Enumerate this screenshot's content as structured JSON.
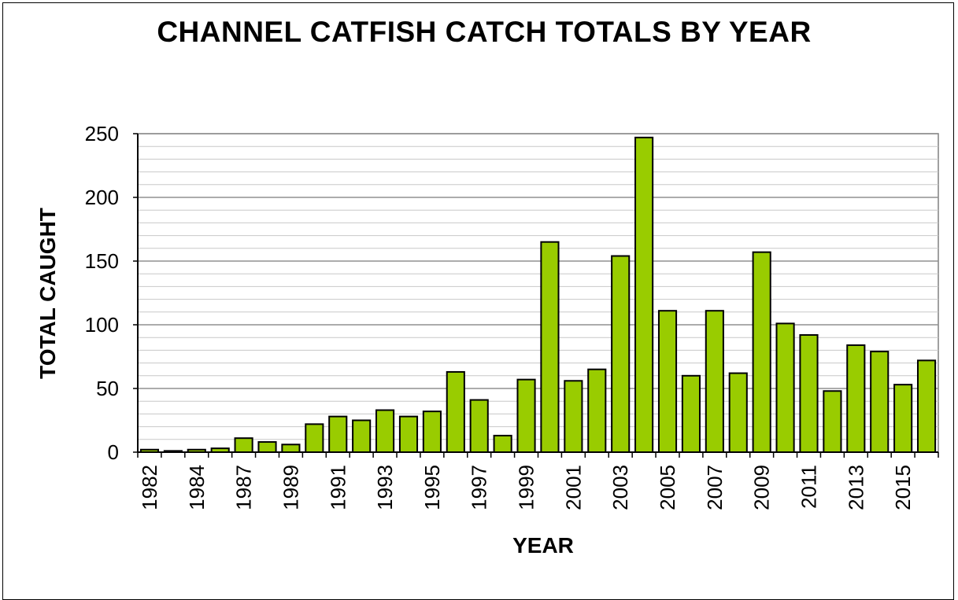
{
  "chart_data": {
    "type": "bar",
    "title": "CHANNEL CATFISH CATCH TOTALS BY YEAR",
    "xlabel": "YEAR",
    "ylabel": "TOTAL CAUGHT",
    "ylim": [
      0,
      250
    ],
    "yticks": [
      0,
      50,
      100,
      150,
      200,
      250
    ],
    "minor_grid_step": 10,
    "grid": true,
    "bar_color": "#99cc00",
    "categories": [
      "1982",
      "1983",
      "1984",
      "1986",
      "1987",
      "1988",
      "1989",
      "1990",
      "1991",
      "1992",
      "1993",
      "1994",
      "1995",
      "1996",
      "1997",
      "1998",
      "1999",
      "2000",
      "2001",
      "2002",
      "2003",
      "2004",
      "2005",
      "2006",
      "2007",
      "2008",
      "2009",
      "2010",
      "2011",
      "2012",
      "2013",
      "2014",
      "2015",
      "2016"
    ],
    "visible_tick_labels": [
      "1982",
      "1984",
      "1987",
      "1989",
      "1991",
      "1993",
      "1995",
      "1997",
      "1999",
      "2001",
      "2003",
      "2005",
      "2007",
      "2009",
      "2011",
      "2013",
      "2015"
    ],
    "values": [
      2,
      1,
      2,
      3,
      11,
      8,
      6,
      22,
      28,
      25,
      33,
      28,
      32,
      63,
      41,
      13,
      57,
      165,
      56,
      65,
      154,
      247,
      111,
      60,
      111,
      62,
      157,
      101,
      92,
      48,
      84,
      79,
      53,
      72
    ]
  }
}
